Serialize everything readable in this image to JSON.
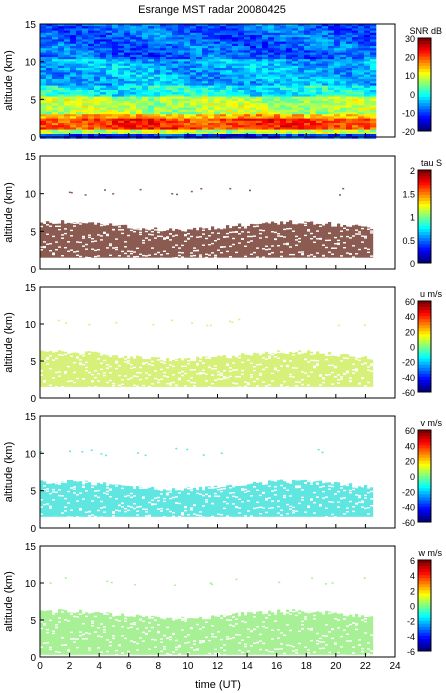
{
  "title": "Esrange MST radar 20080425",
  "xlabel": "time (UT)",
  "chart_data": [
    {
      "type": "heatmap",
      "ylabel": "altitude (km)",
      "colorbar_label": "SNR dB",
      "xlim": [
        0,
        24
      ],
      "ylim": [
        0,
        15
      ],
      "xticks": [
        "0",
        "2",
        "4",
        "6",
        "8",
        "10",
        "12",
        "14",
        "16",
        "18",
        "20",
        "22",
        "24"
      ],
      "yticks": [
        "0",
        "5",
        "10",
        "15"
      ],
      "cbar_range": [
        -20,
        30
      ],
      "cbar_ticks": [
        "-20",
        "-10",
        "0",
        "10",
        "20",
        "30"
      ],
      "data_xrange": [
        0,
        22.5
      ],
      "fill": "snr"
    },
    {
      "type": "heatmap",
      "ylabel": "altitude (km)",
      "colorbar_label": "tau S",
      "xlim": [
        0,
        24
      ],
      "ylim": [
        0,
        15
      ],
      "xticks": [
        "0",
        "2",
        "4",
        "6",
        "8",
        "10",
        "12",
        "14",
        "16",
        "18",
        "20",
        "22",
        "24"
      ],
      "yticks": [
        "0",
        "5",
        "10",
        "15"
      ],
      "cbar_range": [
        0,
        2
      ],
      "cbar_ticks": [
        "0",
        "0.5",
        "1",
        "1.5",
        "2"
      ],
      "data_xrange": [
        0,
        22.5
      ],
      "band_km": [
        1.5,
        6.0
      ],
      "color": "#8b5a50"
    },
    {
      "type": "heatmap",
      "ylabel": "altitude (km)",
      "colorbar_label": "u m/s",
      "xlim": [
        0,
        24
      ],
      "ylim": [
        0,
        15
      ],
      "xticks": [
        "0",
        "2",
        "4",
        "6",
        "8",
        "10",
        "12",
        "14",
        "16",
        "18",
        "20",
        "22",
        "24"
      ],
      "yticks": [
        "0",
        "5",
        "10",
        "15"
      ],
      "cbar_range": [
        -60,
        60
      ],
      "cbar_ticks": [
        "-60",
        "-40",
        "-20",
        "0",
        "20",
        "40",
        "60"
      ],
      "data_xrange": [
        0,
        22.5
      ],
      "band_km": [
        1.5,
        6.0
      ],
      "color": "#d6f07a"
    },
    {
      "type": "heatmap",
      "ylabel": "altitude (km)",
      "colorbar_label": "v m/s",
      "xlim": [
        0,
        24
      ],
      "ylim": [
        0,
        15
      ],
      "xticks": [
        "0",
        "2",
        "4",
        "6",
        "8",
        "10",
        "12",
        "14",
        "16",
        "18",
        "20",
        "22",
        "24"
      ],
      "yticks": [
        "0",
        "5",
        "10",
        "15"
      ],
      "cbar_range": [
        -60,
        60
      ],
      "cbar_ticks": [
        "-60",
        "-40",
        "-20",
        "0",
        "20",
        "40",
        "60"
      ],
      "data_xrange": [
        0,
        22.5
      ],
      "band_km": [
        1.5,
        6.0
      ],
      "color": "#5fe6e0"
    },
    {
      "type": "heatmap",
      "ylabel": "altitude (km)",
      "colorbar_label": "w m/s",
      "xlim": [
        0,
        24
      ],
      "ylim": [
        0,
        15
      ],
      "xticks": [
        "0",
        "2",
        "4",
        "6",
        "8",
        "10",
        "12",
        "14",
        "16",
        "18",
        "20",
        "22",
        "24"
      ],
      "yticks": [
        "0",
        "5",
        "10",
        "15"
      ],
      "cbar_range": [
        -6,
        6
      ],
      "cbar_ticks": [
        "-6",
        "-4",
        "-2",
        "0",
        "2",
        "4",
        "6"
      ],
      "data_xrange": [
        0,
        22.5
      ],
      "band_km": [
        0.3,
        6.0
      ],
      "color": "#a8f095"
    }
  ]
}
